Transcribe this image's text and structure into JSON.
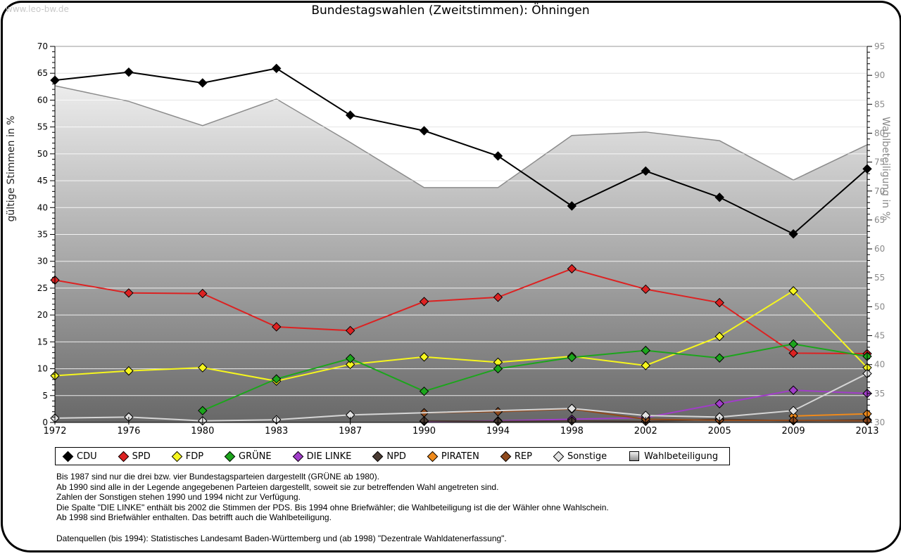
{
  "page": {
    "watermark": "www.leo-bw.de"
  },
  "chart_data": {
    "type": "line",
    "title": "Bundestagswahlen (Zweitstimmen): Öhningen",
    "ylabel_left": "gültige Stimmen in %",
    "ylabel_right": "Wahlbeteiligung in %",
    "ylim_left": [
      0,
      70
    ],
    "ylim_right": [
      30,
      95
    ],
    "ytick_step": 5,
    "grid": true,
    "legend_position": "bottom",
    "categories": [
      "1972",
      "1976",
      "1980",
      "1983",
      "1987",
      "1990",
      "1994",
      "1998",
      "2002",
      "2005",
      "2009",
      "2013"
    ],
    "series": [
      {
        "name": "CDU",
        "color": "#000000",
        "axis": "left",
        "marker": "diamond",
        "values": [
          63.7,
          65.2,
          63.2,
          65.9,
          57.2,
          54.3,
          49.6,
          40.3,
          46.8,
          41.9,
          35.1,
          47.2
        ]
      },
      {
        "name": "SPD",
        "color": "#dc2222",
        "axis": "left",
        "marker": "diamond",
        "values": [
          26.5,
          24.1,
          24.0,
          17.8,
          17.1,
          22.5,
          23.3,
          28.6,
          24.8,
          22.3,
          12.9,
          12.8
        ]
      },
      {
        "name": "FDP",
        "color": "#f6f61e",
        "axis": "left",
        "marker": "diamond",
        "values": [
          8.7,
          9.6,
          10.2,
          7.7,
          10.8,
          12.2,
          11.2,
          12.3,
          10.6,
          16.0,
          24.5,
          10.2
        ]
      },
      {
        "name": "GRÜNE",
        "color": "#1ca51c",
        "axis": "left",
        "marker": "diamond",
        "values": [
          null,
          null,
          2.2,
          8.1,
          11.9,
          5.8,
          10.0,
          12.1,
          13.4,
          12.0,
          14.6,
          12.3
        ]
      },
      {
        "name": "DIE LINKE",
        "color": "#a13dc9",
        "axis": "left",
        "marker": "diamond",
        "values": [
          null,
          null,
          null,
          null,
          null,
          0.2,
          0.3,
          0.6,
          0.9,
          3.5,
          6.0,
          5.4
        ]
      },
      {
        "name": "NPD",
        "color": "#4a3b33",
        "axis": "left",
        "marker": "diamond",
        "values": [
          null,
          null,
          null,
          null,
          null,
          0.3,
          0.2,
          0.3,
          0.2,
          0.6,
          0.3,
          0.5
        ]
      },
      {
        "name": "PIRATEN",
        "color": "#ef8a1b",
        "axis": "left",
        "marker": "diamond",
        "values": [
          null,
          null,
          null,
          null,
          null,
          null,
          null,
          null,
          null,
          null,
          1.2,
          1.6
        ]
      },
      {
        "name": "REP",
        "color": "#8f4a1d",
        "axis": "left",
        "marker": "diamond",
        "values": [
          null,
          null,
          null,
          null,
          null,
          1.8,
          2.0,
          2.5,
          0.6,
          0.4,
          0.4,
          0.3
        ]
      },
      {
        "name": "Sonstige",
        "color": "#d6d6d6",
        "axis": "left",
        "marker": "diamond",
        "marker_fill": "#e3e3e3",
        "values": [
          0.8,
          1.0,
          0.3,
          0.5,
          1.4,
          null,
          null,
          2.6,
          1.3,
          1.0,
          2.2,
          9.1
        ]
      },
      {
        "name": "Wahlbeteiligung",
        "type": "area",
        "color": "#8c8c8c",
        "axis": "right",
        "legend_marker": "square",
        "values": [
          88.2,
          85.5,
          81.3,
          85.9,
          78.4,
          70.6,
          70.6,
          79.6,
          80.2,
          78.7,
          71.9,
          78.0
        ]
      }
    ]
  },
  "footnotes": [
    "Bis 1987 sind nur die drei bzw. vier Bundestagsparteien dargestellt (GRÜNE ab 1980).",
    "Ab 1990 sind alle in der Legende angegebenen Parteien dargestellt, soweit sie zur betreffenden Wahl angetreten sind.",
    "Zahlen der Sonstigen stehen 1990 und 1994 nicht zur Verfügung.",
    "Die Spalte \"DIE LINKE\" enthält bis 2002 die Stimmen der PDS. Bis 1994 ohne Briefwähler; die Wahlbeteiligung ist die der Wähler ohne Wahlschein.",
    "Ab 1998 sind Briefwähler enthalten. Das betrifft auch die Wahlbeteiligung.",
    "Datenquellen (bis 1994): Statistisches Landesamt Baden-Württemberg und (ab 1998) \"Dezentrale Wahldatenerfassung\"."
  ]
}
